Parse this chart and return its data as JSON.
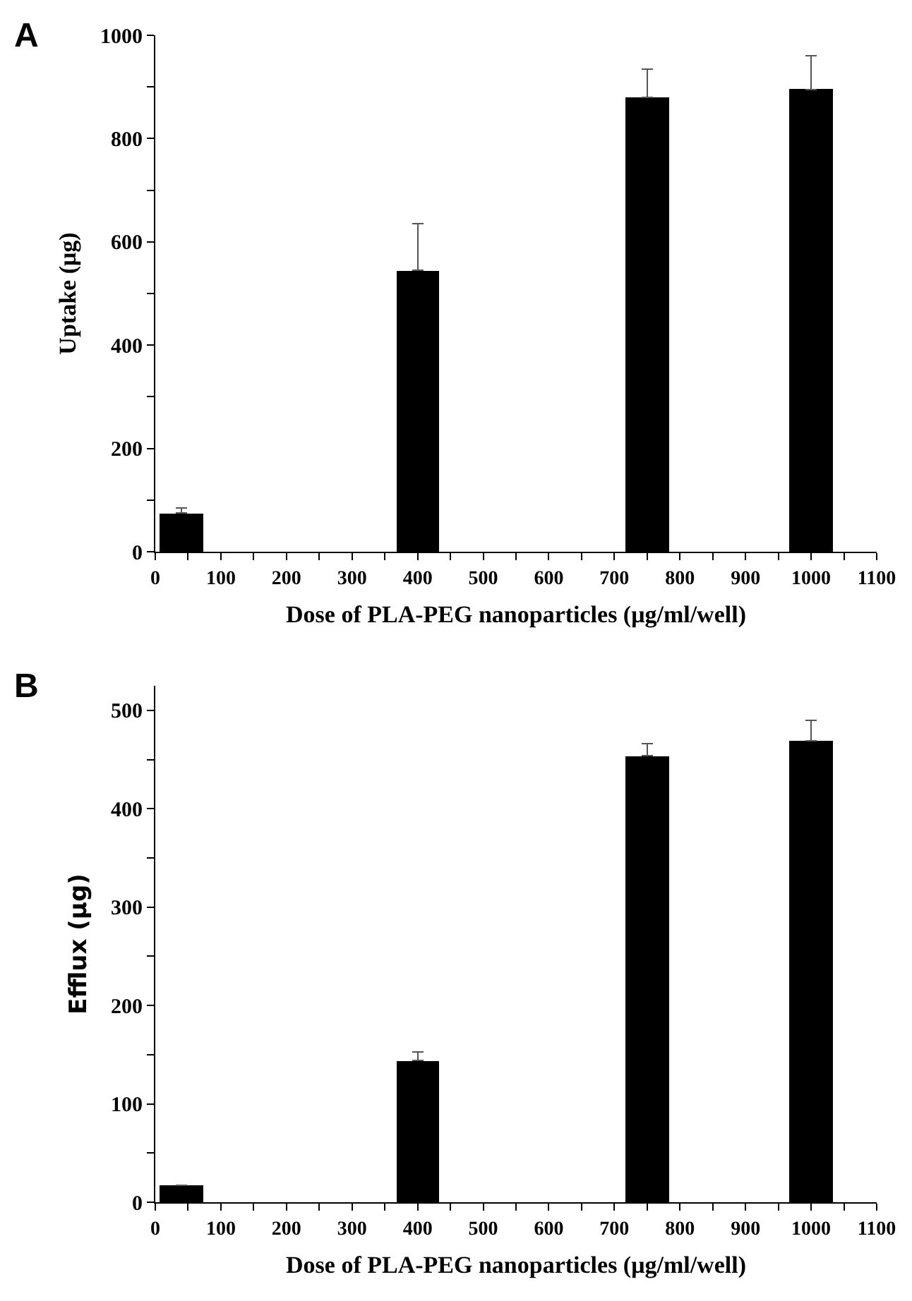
{
  "chart_data": [
    {
      "type": "bar",
      "annotations": [
        "A"
      ],
      "xlabel": "Dose of PLA-PEG nanoparticles (μg/ml/well)",
      "ylabel": "Uptake (μg)",
      "x": [
        40,
        400,
        750,
        1000
      ],
      "values": [
        75,
        545,
        880,
        895
      ],
      "color": "#000000",
      "errors": [
        [
          75,
          85
        ],
        [
          545,
          635
        ],
        [
          880,
          935
        ],
        [
          895,
          960
        ]
      ],
      "xlim": [
        0,
        1100
      ],
      "xticks": [
        0,
        {
          "value": 50,
          "label": null
        },
        100,
        {
          "value": 150,
          "label": null
        },
        200,
        {
          "value": 250,
          "label": null
        },
        300,
        {
          "value": 350,
          "label": null
        },
        400,
        {
          "value": 450,
          "label": null
        },
        500,
        {
          "value": 550,
          "label": null
        },
        600,
        {
          "value": 650,
          "label": null
        },
        700,
        {
          "value": 750,
          "label": null
        },
        800,
        {
          "value": 850,
          "label": null
        },
        900,
        {
          "value": 950,
          "label": null
        },
        1000,
        {
          "value": 1050,
          "label": null
        },
        1100
      ],
      "ylim": [
        0,
        1000
      ],
      "yticks": [
        0,
        {
          "value": 100,
          "label": null
        },
        200,
        {
          "value": 300,
          "label": null
        },
        400,
        {
          "value": 500,
          "label": null
        },
        600,
        {
          "value": 700,
          "label": null
        },
        800,
        {
          "value": 900,
          "label": null
        },
        1000
      ]
    },
    {
      "type": "bar",
      "annotations": [
        "B"
      ],
      "xlabel": "Dose of PLA-PEG nanoparticles (μg/ml/well)",
      "ylabel": "Efflux (μg)",
      "x": [
        40,
        400,
        750,
        1000
      ],
      "values": [
        17,
        144,
        454,
        469
      ],
      "color": "#000000",
      "errors": [
        null,
        [
          144,
          153
        ],
        [
          454,
          466
        ],
        [
          469,
          490
        ]
      ],
      "xlim": [
        0,
        1100
      ],
      "xticks": [
        0,
        {
          "value": 50,
          "label": null
        },
        100,
        {
          "value": 150,
          "label": null
        },
        200,
        {
          "value": 250,
          "label": null
        },
        300,
        {
          "value": 350,
          "label": null
        },
        400,
        {
          "value": 450,
          "label": null
        },
        500,
        {
          "value": 550,
          "label": null
        },
        600,
        {
          "value": 650,
          "label": null
        },
        700,
        {
          "value": 750,
          "label": null
        },
        800,
        {
          "value": 850,
          "label": null
        },
        900,
        {
          "value": 950,
          "label": null
        },
        1000,
        {
          "value": 1050,
          "label": null
        },
        1100
      ],
      "ylim": [
        0,
        525
      ],
      "yticks": [
        0,
        {
          "value": 50,
          "label": null
        },
        100,
        {
          "value": 150,
          "label": null
        },
        200,
        {
          "value": 250,
          "label": null
        },
        300,
        {
          "value": 350,
          "label": null
        },
        400,
        {
          "value": 450,
          "label": null
        },
        500
      ]
    }
  ]
}
